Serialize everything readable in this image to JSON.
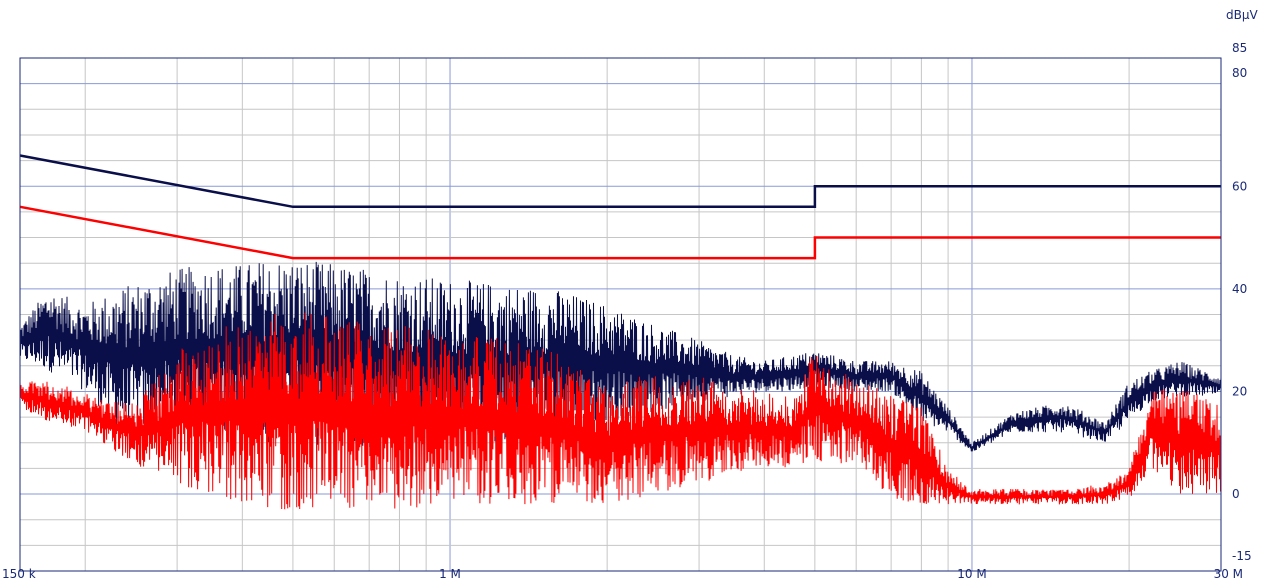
{
  "chart_data": {
    "type": "line",
    "title": "",
    "xlabel": "",
    "ylabel": "",
    "y_unit_label": "dBµV",
    "x_scale": "log",
    "xlim": [
      150000,
      30000000
    ],
    "ylim": [
      -15,
      85
    ],
    "x_tick_labels": [
      {
        "value": 150000,
        "label": "150 k"
      },
      {
        "value": 1000000,
        "label": "1 M"
      },
      {
        "value": 10000000,
        "label": "10 M"
      },
      {
        "value": 30000000,
        "label": "30 M"
      }
    ],
    "y_tick_labels": [
      {
        "value": 85,
        "label": "85"
      },
      {
        "value": 80,
        "label": "80"
      },
      {
        "value": 60,
        "label": "60"
      },
      {
        "value": 40,
        "label": "40"
      },
      {
        "value": 20,
        "label": "20"
      },
      {
        "value": 0,
        "label": "0"
      },
      {
        "value": -15,
        "label": "-15"
      }
    ],
    "grid": true,
    "legend": "none",
    "colors": {
      "axis": "#1a2a78",
      "grid": "#c6c6c6",
      "grid_decade": "#8a9ad8",
      "quasi_peak": "#0a0f4a",
      "average": "#ff0000"
    },
    "series": [
      {
        "kind": "limit_line",
        "color": "#0a0f4a",
        "x": [
          150000,
          500000,
          500000,
          5000000,
          5000000,
          30000000
        ],
        "y": [
          66,
          56,
          56,
          56,
          60,
          60
        ]
      },
      {
        "kind": "limit_line",
        "color": "#ff0000",
        "x": [
          150000,
          500000,
          500000,
          5000000,
          5000000,
          30000000
        ],
        "y": [
          56,
          46,
          46,
          46,
          50,
          50
        ]
      },
      {
        "kind": "measurement_envelope",
        "color": "#0a0f4a",
        "x": [
          150000,
          170000,
          200000,
          230000,
          260000,
          300000,
          350000,
          400000,
          450000,
          500000,
          600000,
          700000,
          800000,
          1000000,
          1300000,
          1600000,
          2000000,
          2500000,
          3000000,
          3500000,
          4000000,
          4500000,
          5000000,
          6000000,
          7000000,
          8000000,
          9000000,
          10000000,
          12000000,
          15000000,
          18000000,
          20000000,
          22000000,
          25000000,
          30000000
        ],
        "y_max": [
          33,
          40,
          37,
          40,
          42,
          44,
          45,
          45,
          46,
          46,
          45,
          44,
          43,
          42,
          41,
          40,
          37,
          33,
          30,
          27,
          26,
          27,
          28,
          26,
          26,
          24,
          17,
          10,
          16,
          18,
          14,
          22,
          24,
          26,
          23
        ],
        "y_min": [
          26,
          24,
          20,
          13,
          12,
          12,
          12,
          10,
          10,
          10,
          9,
          9,
          9,
          9,
          10,
          12,
          14,
          16,
          18,
          19,
          20,
          20,
          21,
          20,
          20,
          14,
          12,
          8,
          12,
          12,
          10,
          14,
          18,
          19,
          19
        ]
      },
      {
        "kind": "measurement_envelope",
        "color": "#ff0000",
        "x": [
          150000,
          170000,
          200000,
          230000,
          260000,
          300000,
          350000,
          400000,
          450000,
          500000,
          600000,
          700000,
          800000,
          1000000,
          1300000,
          1600000,
          2000000,
          2500000,
          3000000,
          3500000,
          4000000,
          4500000,
          5000000,
          6000000,
          7000000,
          8000000,
          9000000,
          10000000,
          12000000,
          15000000,
          18000000,
          20000000,
          22000000,
          25000000,
          30000000
        ],
        "y_max": [
          22,
          22,
          20,
          18,
          20,
          28,
          32,
          34,
          35,
          36,
          35,
          34,
          33,
          32,
          30,
          28,
          22,
          24,
          23,
          21,
          20,
          19,
          28,
          22,
          20,
          17,
          5,
          1,
          1,
          1,
          2,
          5,
          20,
          21,
          18
        ],
        "y_min": [
          17,
          14,
          12,
          8,
          4,
          2,
          0,
          -2,
          -3,
          -3,
          -3,
          -3,
          -3,
          -2,
          -2,
          -2,
          -2,
          0,
          2,
          4,
          5,
          5,
          6,
          6,
          -1,
          -2,
          -2,
          -2,
          -2,
          -2,
          -2,
          -1,
          5,
          0,
          0
        ]
      }
    ]
  }
}
